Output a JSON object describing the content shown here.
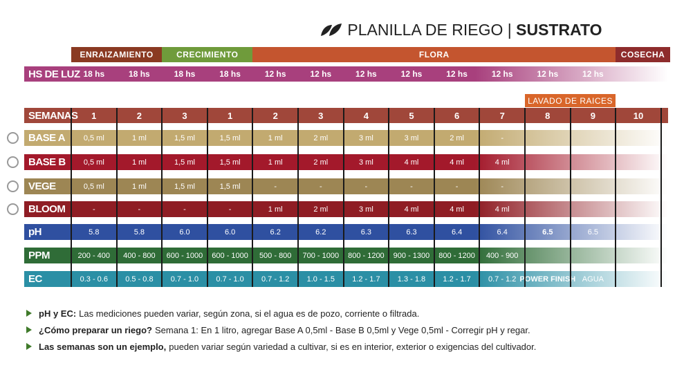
{
  "header": {
    "title_light": "PLANILLA DE RIEGO",
    "separator": "|",
    "title_bold": "SUSTRATO"
  },
  "phases": [
    {
      "label": "ENRAIZAMIENTO",
      "color": "#8a3a22"
    },
    {
      "label": "CRECIMIENTO",
      "color": "#6f9b3b"
    },
    {
      "label": "FLORA",
      "color": "#c4552f"
    },
    {
      "label": "COSECHA",
      "color": "#8e2c2c"
    }
  ],
  "light": {
    "label": "HS DE LUZ",
    "color": "#a8407d",
    "values": [
      "18 hs",
      "18 hs",
      "18 hs",
      "18 hs",
      "12 hs",
      "12 hs",
      "12 hs",
      "12 hs",
      "12 hs",
      "12 hs",
      "12 hs",
      "12 hs"
    ]
  },
  "lavado": {
    "label": "LAVADO DE RAICES",
    "color": "#d9662a"
  },
  "weeks": {
    "label": "SEMANAS",
    "color": "#a0473a",
    "values": [
      "1",
      "2",
      "3",
      "1",
      "2",
      "3",
      "4",
      "5",
      "6",
      "7",
      "8",
      "9",
      "10"
    ]
  },
  "rows": [
    {
      "label": "BASE A",
      "color": "#c2aa70",
      "values": [
        "0,5 ml",
        "1 ml",
        "1,5 ml",
        "1,5 ml",
        "1 ml",
        "2 ml",
        "3 ml",
        "3 ml",
        "2 ml",
        "-"
      ]
    },
    {
      "label": "BASE B",
      "color": "#a3192b",
      "values": [
        "0,5 ml",
        "1 ml",
        "1,5 ml",
        "1,5 ml",
        "1 ml",
        "2 ml",
        "3 ml",
        "4 ml",
        "4 ml",
        "4 ml"
      ]
    },
    {
      "label": "VEGE",
      "color": "#9d8654",
      "values": [
        "0,5 ml",
        "1 ml",
        "1,5 ml",
        "1,5 ml",
        "-",
        "-",
        "-",
        "-",
        "-",
        "-"
      ]
    },
    {
      "label": "BLOOM",
      "color": "#8f1d24",
      "values": [
        "-",
        "-",
        "-",
        "-",
        "1 ml",
        "2 ml",
        "3 ml",
        "4 ml",
        "4 ml",
        "4 ml"
      ]
    },
    {
      "label": "pH",
      "color": "#2f50a0",
      "values": [
        "5.8",
        "5.8",
        "6.0",
        "6.0",
        "6.2",
        "6.2",
        "6.3",
        "6.3",
        "6.4",
        "6.4",
        "6.5",
        "6.5"
      ]
    },
    {
      "label": "PPM",
      "color": "#2f6c37",
      "values": [
        "200 - 400",
        "400 - 800",
        "600 - 1000",
        "600 - 1000",
        "500 - 800",
        "700 - 1000",
        "800 - 1200",
        "900 - 1300",
        "800 - 1200",
        "400 - 900"
      ]
    },
    {
      "label": "EC",
      "color": "#2b8fa5",
      "values": [
        "0.3 - 0.6",
        "0.5 - 0.8",
        "0.7 - 1.0",
        "0.7 - 1.0",
        "0.7 - 1.2",
        "1.0 - 1.5",
        "1.2 - 1.7",
        "1.3 - 1.8",
        "1.2 - 1.7",
        "0.7 - 1.2",
        "POWER FINISH",
        "AGUA"
      ]
    }
  ],
  "notes": [
    {
      "bold": "pH y EC:",
      "text": "Las mediciones pueden variar, según zona, si el agua es de pozo, corriente o filtrada."
    },
    {
      "bold": "¿Cómo preparar un riego?",
      "text": "Semana 1:  En 1 litro, agregar Base A 0,5ml - Base B 0,5ml y Vege 0,5ml - Corregir pH y regar."
    },
    {
      "bold": "Las semanas son un ejemplo,",
      "text": "pueden variar según variedad a cultivar, si es en interior, exterior o exigencias del cultivador."
    }
  ]
}
